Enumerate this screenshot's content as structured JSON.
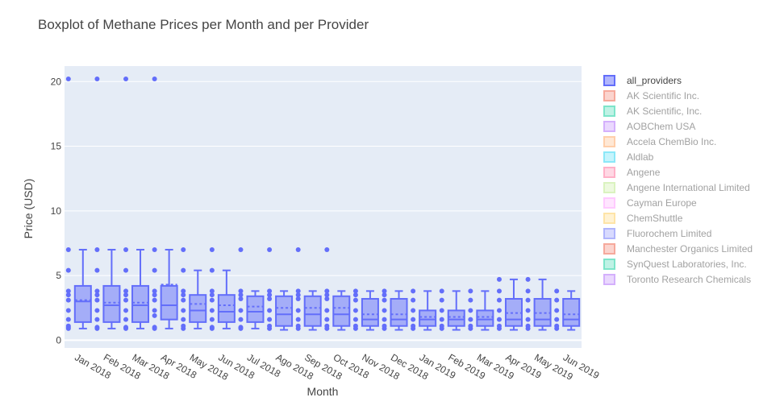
{
  "chart_data": {
    "type": "box",
    "title": "Boxplot of Methane Prices per Month and per Provider",
    "xlabel": "Month",
    "ylabel": "Price (USD)",
    "ylim": [
      -0.6,
      21.2
    ],
    "yticks": [
      0,
      5,
      10,
      15,
      20
    ],
    "grid": true,
    "legend_position": "right",
    "categories": [
      "Jan 2018",
      "Feb 2018",
      "Mar 2018",
      "Apr 2018",
      "May 2018",
      "Jun 2018",
      "Jul 2018",
      "Ago 2018",
      "Sep 2018",
      "Oct 2018",
      "Nov 2018",
      "Dec 2018",
      "Jan 2019",
      "Feb 2019",
      "Mar 2019",
      "Apr 2019",
      "May 2019",
      "Jun 2019"
    ],
    "series": [
      {
        "name": "all_providers",
        "color": "#636efa",
        "visible": true,
        "boxes": [
          {
            "q1": 1.4,
            "median": 3.0,
            "q3": 4.2,
            "mean": 3.1,
            "lower": 0.9,
            "upper": 7.0,
            "points": [
              20.2,
              7.0,
              5.4,
              3.8,
              3.5,
              3.1,
              2.3,
              1.6,
              1.1,
              1.0,
              0.9
            ]
          },
          {
            "q1": 1.4,
            "median": 2.7,
            "q3": 4.2,
            "mean": 2.9,
            "lower": 0.9,
            "upper": 7.0,
            "points": [
              20.2,
              7.0,
              5.4,
              3.8,
              3.5,
              3.1,
              2.3,
              1.6,
              1.0,
              0.9
            ]
          },
          {
            "q1": 1.4,
            "median": 2.7,
            "q3": 4.2,
            "mean": 2.9,
            "lower": 0.9,
            "upper": 7.0,
            "points": [
              20.2,
              7.0,
              5.4,
              3.8,
              3.5,
              3.1,
              2.3,
              1.6,
              1.0,
              0.9
            ]
          },
          {
            "q1": 1.6,
            "median": 2.7,
            "q3": 4.2,
            "mean": 4.3,
            "lower": 0.9,
            "upper": 7.0,
            "points": [
              20.2,
              7.0,
              5.4,
              3.8,
              3.5,
              3.1,
              2.3,
              1.9,
              1.0,
              0.9
            ]
          },
          {
            "q1": 1.4,
            "median": 2.3,
            "q3": 3.5,
            "mean": 2.8,
            "lower": 0.9,
            "upper": 5.4,
            "points": [
              7.0,
              5.4,
              3.8,
              3.5,
              3.1,
              2.3,
              1.6,
              1.1,
              0.9
            ]
          },
          {
            "q1": 1.4,
            "median": 2.2,
            "q3": 3.5,
            "mean": 2.7,
            "lower": 0.9,
            "upper": 5.4,
            "points": [
              7.0,
              5.4,
              3.8,
              3.5,
              3.1,
              2.3,
              1.6,
              1.0,
              0.9
            ]
          },
          {
            "q1": 1.4,
            "median": 2.2,
            "q3": 3.4,
            "mean": 2.6,
            "lower": 0.9,
            "upper": 3.8,
            "points": [
              7.0,
              3.8,
              3.5,
              3.2,
              2.3,
              1.6,
              1.0,
              0.9
            ]
          },
          {
            "q1": 1.1,
            "median": 2.0,
            "q3": 3.4,
            "mean": 2.5,
            "lower": 0.8,
            "upper": 3.8,
            "points": [
              7.0,
              3.8,
              3.5,
              3.2,
              2.3,
              1.6,
              1.1,
              0.9
            ]
          },
          {
            "q1": 1.1,
            "median": 2.0,
            "q3": 3.4,
            "mean": 2.5,
            "lower": 0.8,
            "upper": 3.8,
            "points": [
              7.0,
              3.8,
              3.5,
              3.2,
              2.3,
              1.6,
              1.1,
              0.9
            ]
          },
          {
            "q1": 1.1,
            "median": 2.0,
            "q3": 3.4,
            "mean": 2.5,
            "lower": 0.8,
            "upper": 3.8,
            "points": [
              7.0,
              3.8,
              3.5,
              3.2,
              2.3,
              1.6,
              1.1,
              0.9
            ]
          },
          {
            "q1": 1.1,
            "median": 1.6,
            "q3": 3.2,
            "mean": 2.0,
            "lower": 0.8,
            "upper": 3.8,
            "points": [
              3.8,
              3.5,
              3.1,
              2.3,
              1.6,
              1.1,
              0.9
            ]
          },
          {
            "q1": 1.1,
            "median": 1.6,
            "q3": 3.2,
            "mean": 2.0,
            "lower": 0.8,
            "upper": 3.8,
            "points": [
              3.8,
              3.5,
              3.1,
              2.3,
              1.6,
              1.1,
              0.9
            ]
          },
          {
            "q1": 1.1,
            "median": 1.6,
            "q3": 2.3,
            "mean": 1.8,
            "lower": 0.8,
            "upper": 3.8,
            "points": [
              3.8,
              3.1,
              2.3,
              1.6,
              1.1,
              0.9
            ]
          },
          {
            "q1": 1.1,
            "median": 1.6,
            "q3": 2.3,
            "mean": 1.8,
            "lower": 0.8,
            "upper": 3.8,
            "points": [
              3.8,
              3.1,
              2.3,
              1.6,
              1.1,
              0.9
            ]
          },
          {
            "q1": 1.1,
            "median": 1.6,
            "q3": 2.3,
            "mean": 1.8,
            "lower": 0.8,
            "upper": 3.8,
            "points": [
              3.8,
              3.1,
              2.3,
              1.6,
              1.1,
              0.9
            ]
          },
          {
            "q1": 1.1,
            "median": 1.6,
            "q3": 3.2,
            "mean": 2.1,
            "lower": 0.8,
            "upper": 4.7,
            "points": [
              4.7,
              3.8,
              3.1,
              2.3,
              1.6,
              1.1,
              0.9
            ]
          },
          {
            "q1": 1.1,
            "median": 1.6,
            "q3": 3.2,
            "mean": 2.1,
            "lower": 0.8,
            "upper": 4.7,
            "points": [
              4.7,
              3.8,
              3.1,
              2.3,
              1.6,
              1.1,
              0.9
            ]
          },
          {
            "q1": 1.1,
            "median": 1.6,
            "q3": 3.2,
            "mean": 2.0,
            "lower": 0.8,
            "upper": 3.8,
            "points": [
              3.8,
              3.1,
              2.3,
              1.6,
              1.1,
              0.9
            ]
          }
        ]
      },
      {
        "name": "AK Scientific Inc.",
        "color": "#EF553B",
        "visible": false
      },
      {
        "name": "AK Scientific, Inc.",
        "color": "#00cc96",
        "visible": false
      },
      {
        "name": "AOBChem USA",
        "color": "#ab63fa",
        "visible": false
      },
      {
        "name": "Accela ChemBio Inc.",
        "color": "#FFA15A",
        "visible": false
      },
      {
        "name": "Aldlab",
        "color": "#19d3f3",
        "visible": false
      },
      {
        "name": "Angene",
        "color": "#FF6692",
        "visible": false
      },
      {
        "name": "Angene International Limited",
        "color": "#B6E880",
        "visible": false
      },
      {
        "name": "Cayman Europe",
        "color": "#FF97FF",
        "visible": false
      },
      {
        "name": "ChemShuttle",
        "color": "#FECB52",
        "visible": false
      },
      {
        "name": "Fluorochem Limited",
        "color": "#636efa",
        "visible": false
      },
      {
        "name": "Manchester Organics Limited",
        "color": "#EF553B",
        "visible": false
      },
      {
        "name": "SynQuest Laboratories, Inc.",
        "color": "#00cc96",
        "visible": false
      },
      {
        "name": "Toronto Research Chemicals",
        "color": "#ab63fa",
        "visible": false
      }
    ]
  }
}
